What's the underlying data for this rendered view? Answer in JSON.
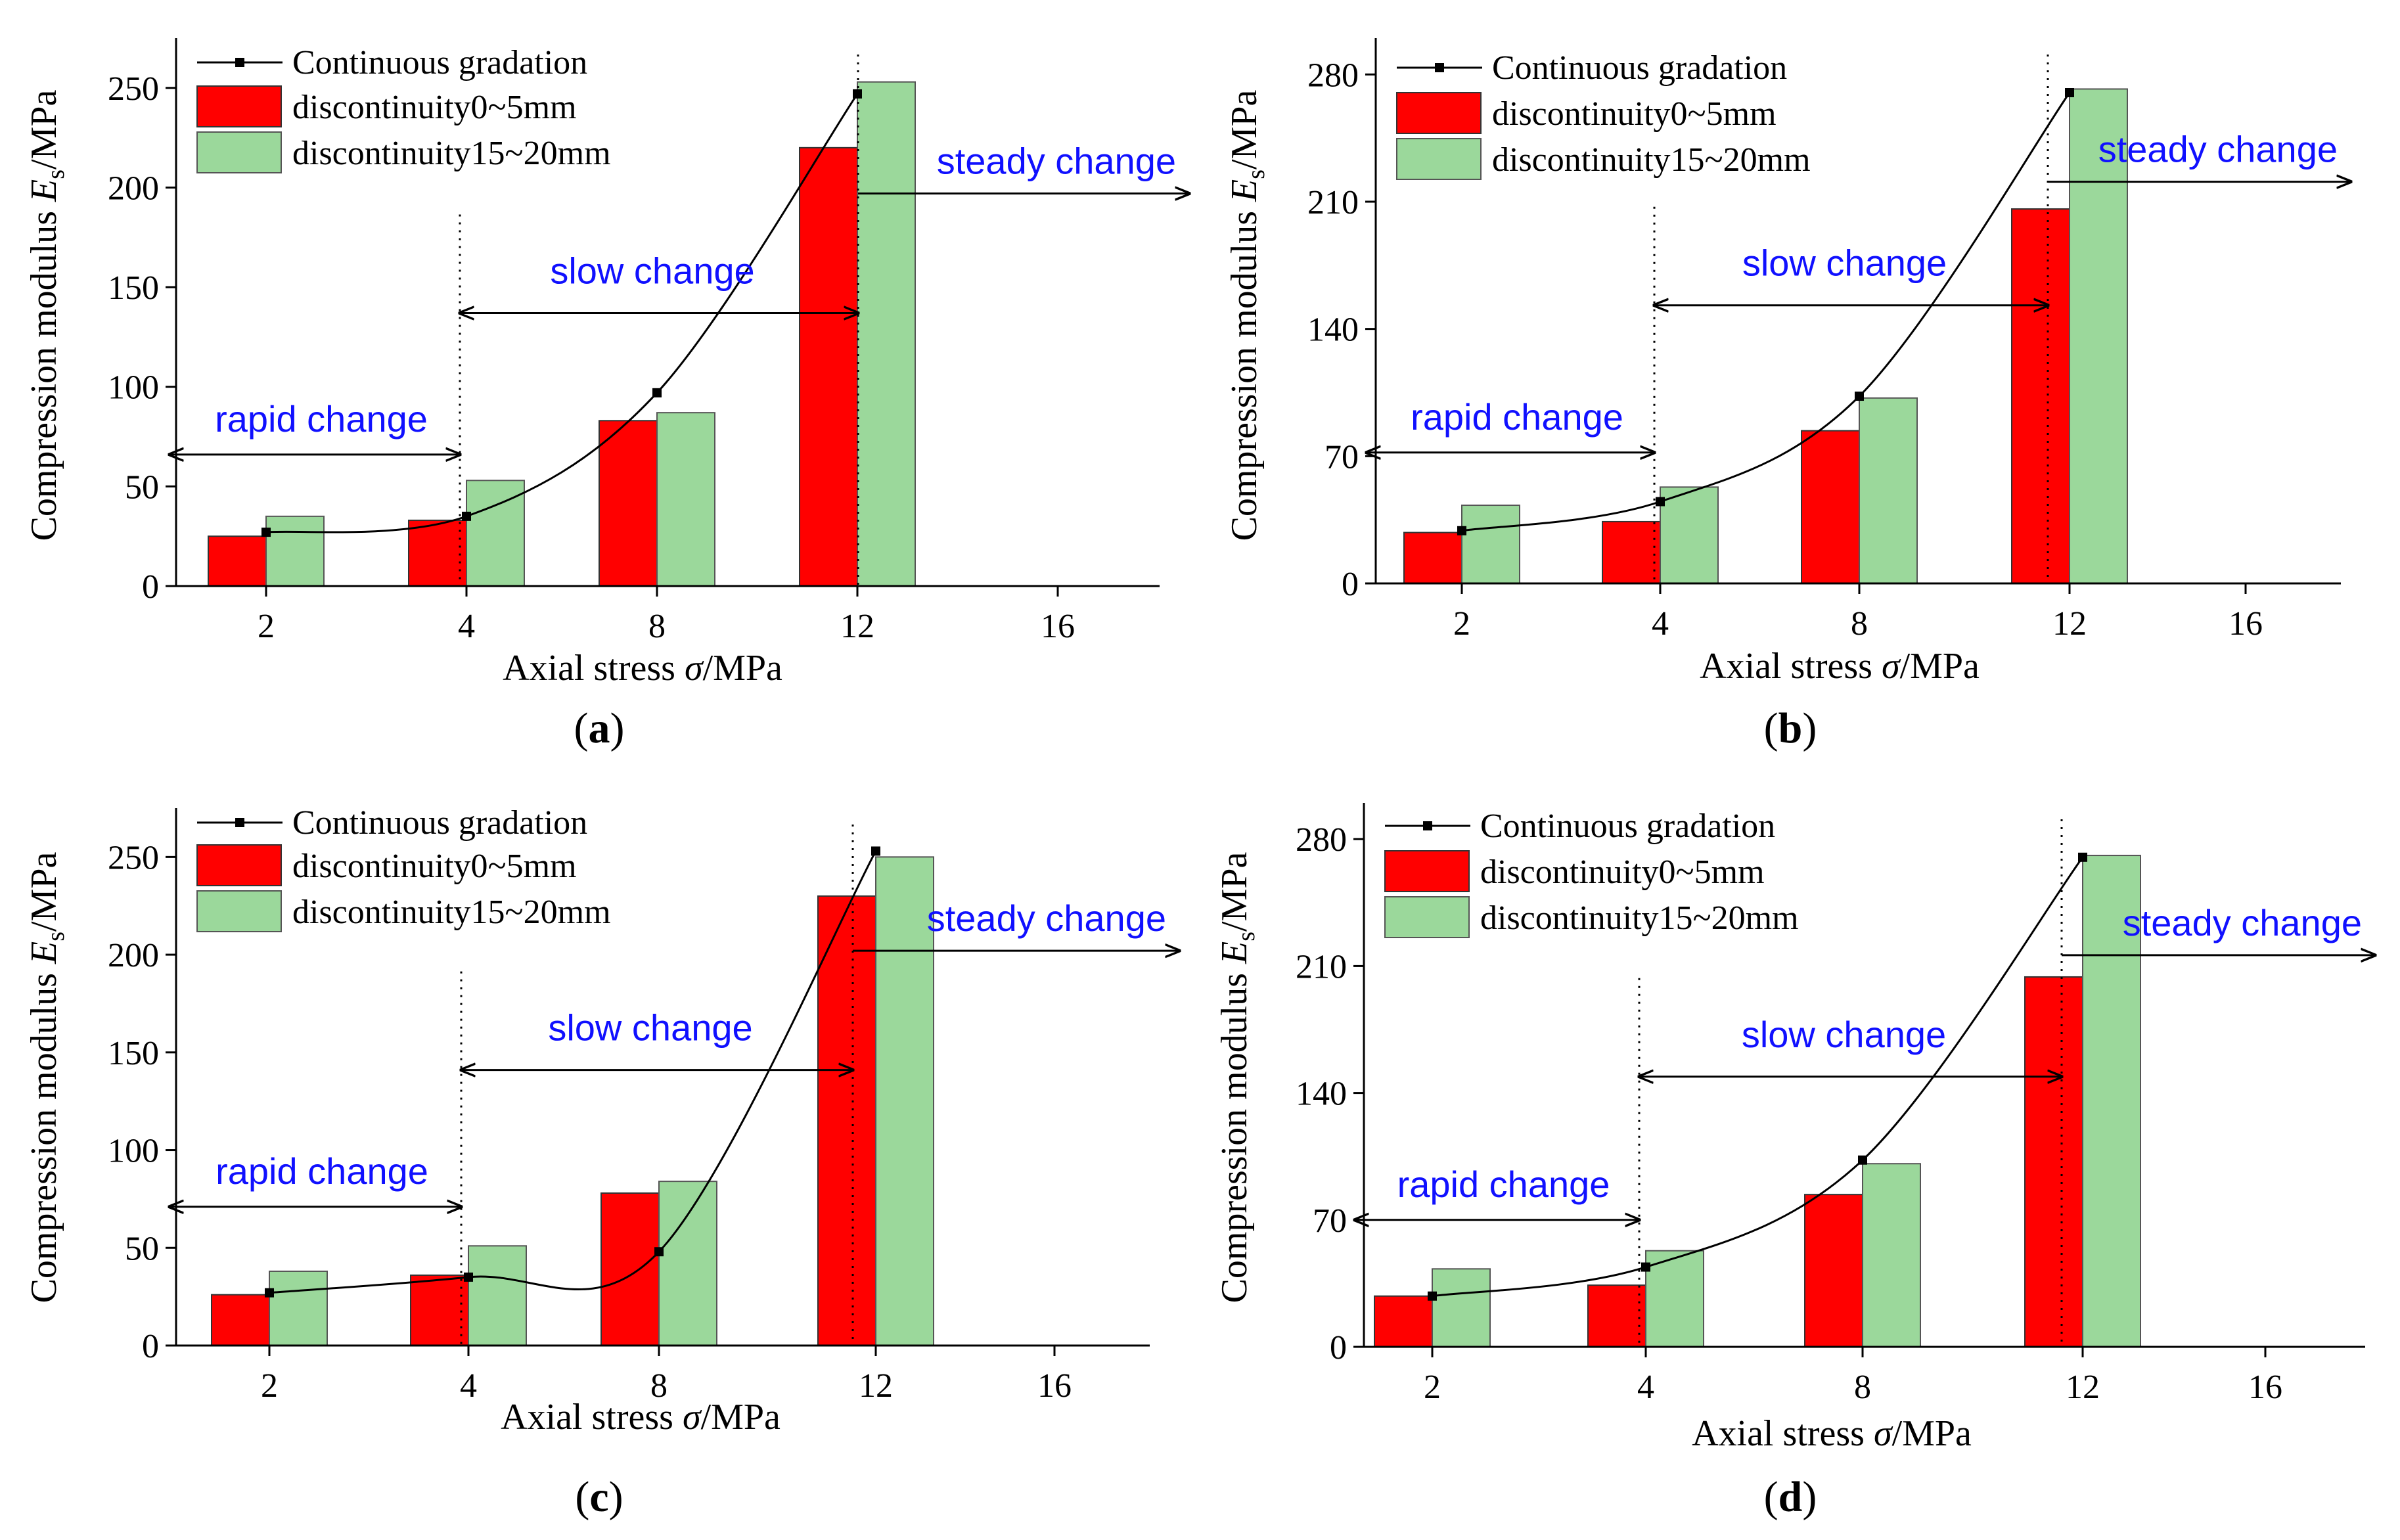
{
  "figure": {
    "panels": [
      "a",
      "b",
      "c",
      "d"
    ]
  },
  "colors": {
    "bar_0_5": "#ff0000",
    "bar_15_20": "#9bd89b",
    "line": "#000000",
    "annotation": "#1010ff",
    "axis": "#000000"
  },
  "chart_data": [
    {
      "id": "a",
      "panel_label": "(a)",
      "type": "bar",
      "categories": [
        "2",
        "4",
        "8",
        "12",
        "16"
      ],
      "series": [
        {
          "name": "Continuous gradation",
          "kind": "line",
          "values": [
            27,
            35,
            97,
            247,
            null
          ]
        },
        {
          "name": "discontinuity0~5mm",
          "kind": "bar",
          "values": [
            25,
            33,
            83,
            220,
            null
          ]
        },
        {
          "name": "discontinuity15~20mm",
          "kind": "bar",
          "values": [
            35,
            53,
            87,
            253,
            null
          ]
        }
      ],
      "ylabel_prefix": "Compression modulus ",
      "ylabel_symbol": "E",
      "ylabel_sub": "s",
      "ylabel_suffix": "/MPa",
      "xlabel_prefix": "Axial stress ",
      "xlabel_symbol": "σ",
      "xlabel_suffix": "/MPa",
      "yticks": [
        0,
        50,
        100,
        150,
        200,
        250
      ],
      "ylim": [
        0,
        275
      ],
      "annotations": {
        "rapid": {
          "label": "rapid change",
          "y": 66
        },
        "slow": {
          "label": "slow change",
          "y": 137
        },
        "steady": {
          "label": "steady change",
          "y": 197
        }
      }
    },
    {
      "id": "b",
      "panel_label": "(b)",
      "type": "bar",
      "categories": [
        "2",
        "4",
        "8",
        "12",
        "16"
      ],
      "series": [
        {
          "name": "Continuous gradation",
          "kind": "line",
          "values": [
            29,
            45,
            103,
            270,
            null
          ]
        },
        {
          "name": "discontinuity0~5mm",
          "kind": "bar",
          "values": [
            28,
            34,
            84,
            206,
            null
          ]
        },
        {
          "name": "discontinuity15~20mm",
          "kind": "bar",
          "values": [
            43,
            53,
            102,
            272,
            null
          ]
        }
      ],
      "ylabel_prefix": "Compression modulus ",
      "ylabel_symbol": "E",
      "ylabel_sub": "s",
      "ylabel_suffix": "/MPa",
      "xlabel_prefix": "Axial stress ",
      "xlabel_symbol": "σ",
      "xlabel_suffix": "/MPa",
      "yticks": [
        0,
        70,
        140,
        210,
        280
      ],
      "ylim": [
        0,
        300
      ],
      "annotations": {
        "rapid": {
          "label": "rapid change",
          "y": 72
        },
        "slow": {
          "label": "slow change",
          "y": 153
        },
        "steady": {
          "label": "steady change",
          "y": 221
        }
      }
    },
    {
      "id": "c",
      "panel_label": "(c)",
      "type": "bar",
      "categories": [
        "2",
        "4",
        "8",
        "12",
        "16"
      ],
      "series": [
        {
          "name": "Continuous gradation",
          "kind": "line",
          "values": [
            27,
            35,
            48,
            253,
            null
          ]
        },
        {
          "name": "discontinuity0~5mm",
          "kind": "bar",
          "values": [
            26,
            36,
            78,
            230,
            null
          ]
        },
        {
          "name": "discontinuity15~20mm",
          "kind": "bar",
          "values": [
            38,
            51,
            84,
            250,
            null
          ]
        }
      ],
      "ylabel_prefix": "Compression modulus ",
      "ylabel_symbol": "E",
      "ylabel_sub": "s",
      "ylabel_suffix": "/MPa",
      "xlabel_prefix": "Axial stress ",
      "xlabel_symbol": "σ",
      "xlabel_suffix": "/MPa",
      "yticks": [
        0,
        50,
        100,
        150,
        200,
        250
      ],
      "ylim": [
        0,
        275
      ],
      "annotations": {
        "rapid": {
          "label": "rapid change",
          "y": 71
        },
        "slow": {
          "label": "slow change",
          "y": 141
        },
        "steady": {
          "label": "steady change",
          "y": 202
        }
      }
    },
    {
      "id": "d",
      "panel_label": "(d)",
      "type": "bar",
      "categories": [
        "2",
        "4",
        "8",
        "12",
        "16"
      ],
      "series": [
        {
          "name": "Continuous gradation",
          "kind": "line",
          "values": [
            28,
            44,
            103,
            270,
            null
          ]
        },
        {
          "name": "discontinuity0~5mm",
          "kind": "bar",
          "values": [
            28,
            34,
            84,
            204,
            null
          ]
        },
        {
          "name": "discontinuity15~20mm",
          "kind": "bar",
          "values": [
            43,
            53,
            101,
            271,
            null
          ]
        }
      ],
      "ylabel_prefix": "Compression modulus ",
      "ylabel_symbol": "E",
      "ylabel_sub": "s",
      "ylabel_suffix": "/MPa",
      "xlabel_prefix": "Axial stress ",
      "xlabel_symbol": "σ",
      "xlabel_suffix": "/MPa",
      "yticks": [
        0,
        70,
        140,
        210,
        280
      ],
      "ylim": [
        0,
        300
      ],
      "annotations": {
        "rapid": {
          "label": "rapid change",
          "y": 70
        },
        "slow": {
          "label": "slow change",
          "y": 149
        },
        "steady": {
          "label": "steady change",
          "y": 216
        }
      }
    }
  ]
}
